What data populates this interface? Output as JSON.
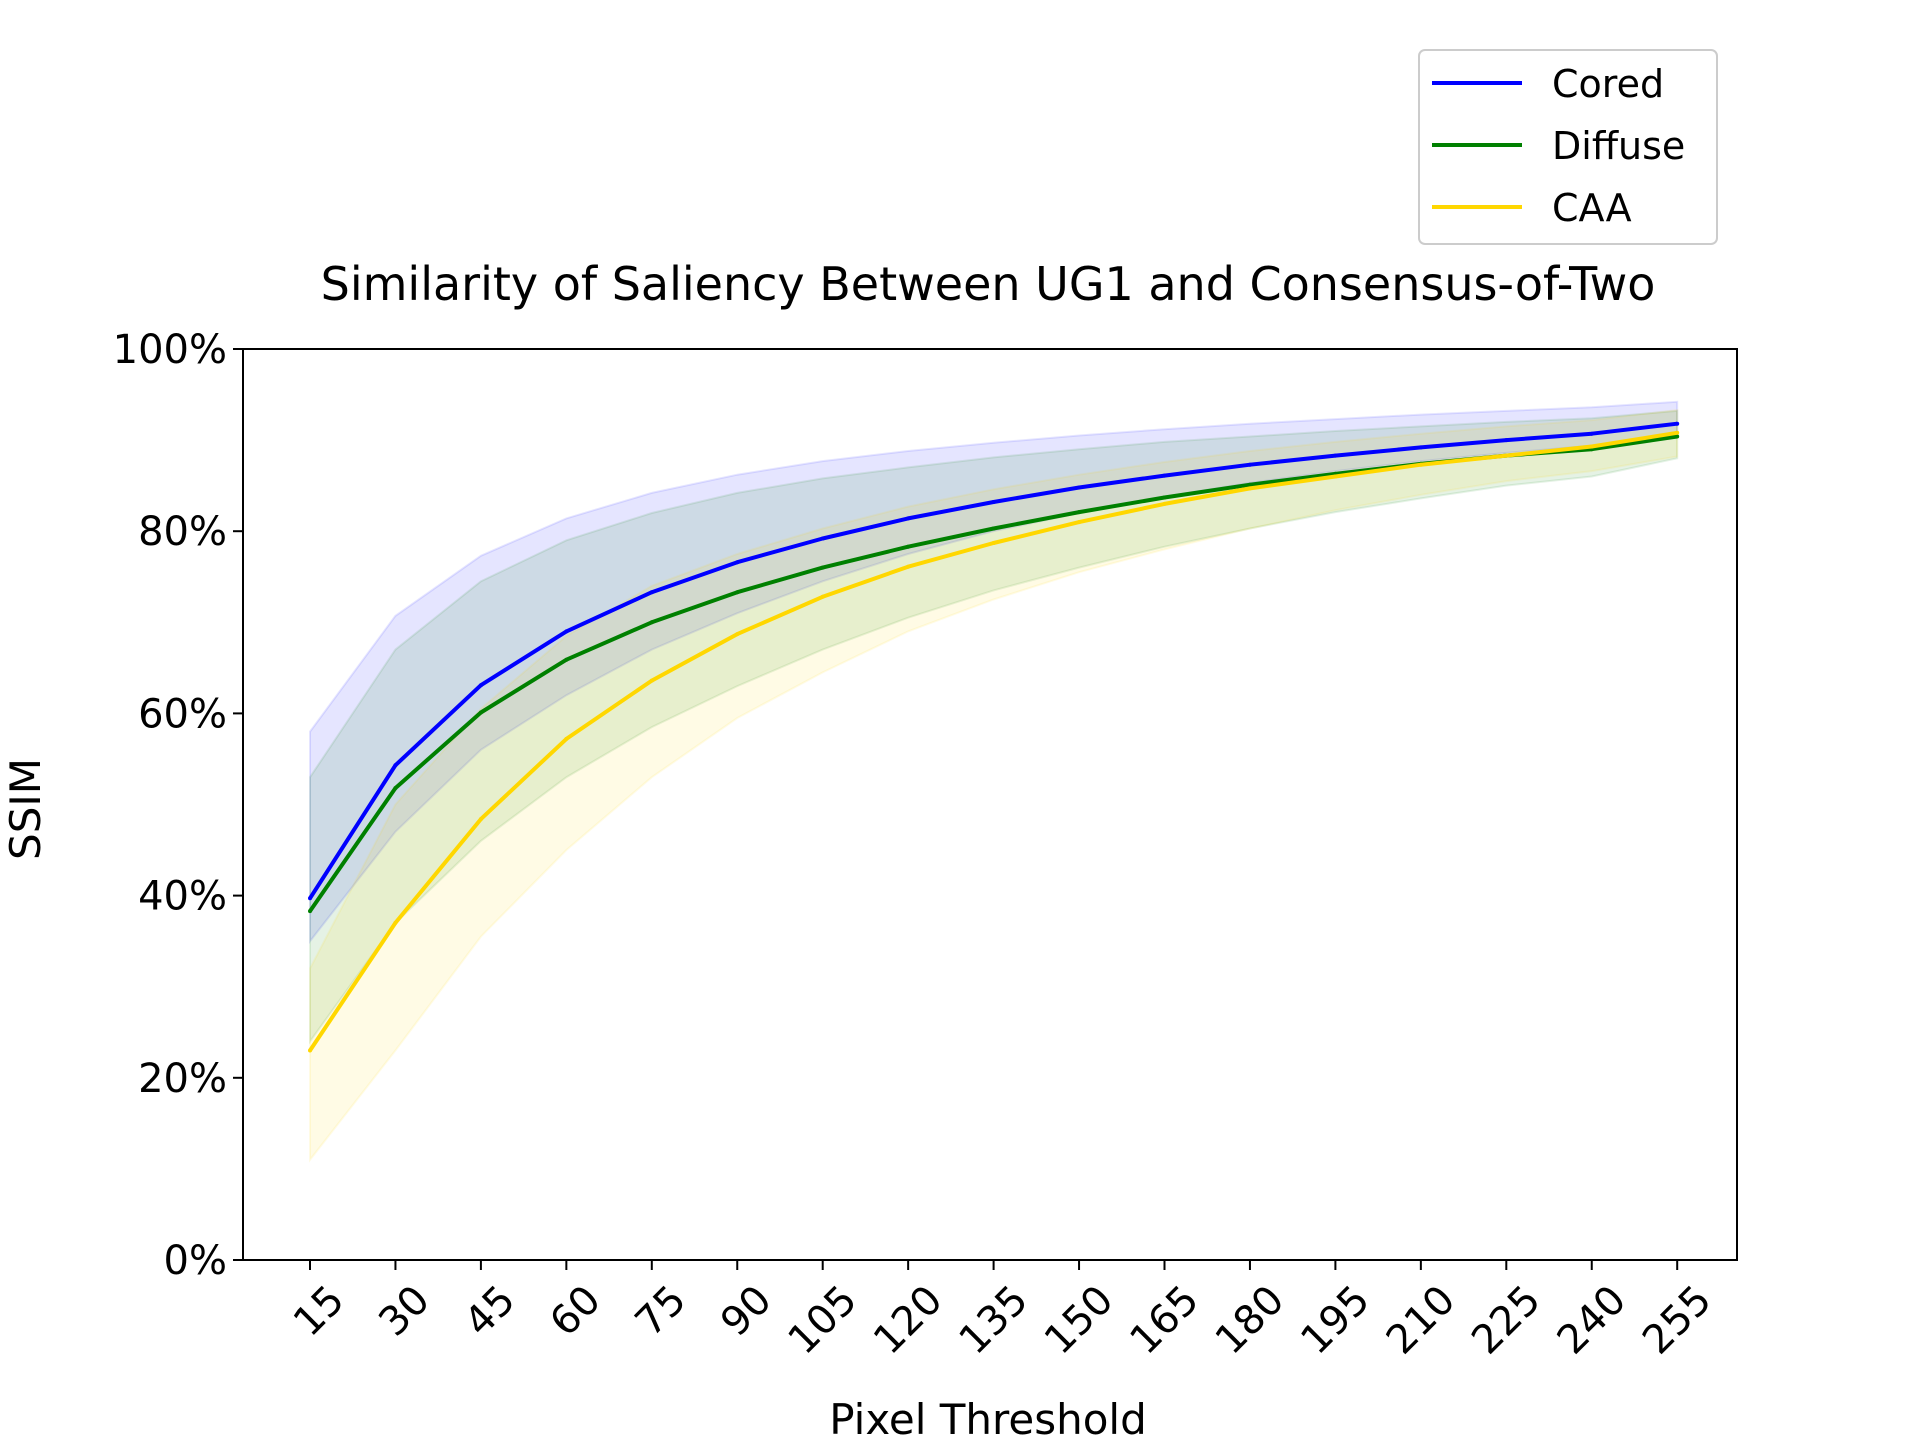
{
  "chart_data": {
    "type": "line",
    "title": "Similarity of Saliency Between UG1 and Consensus-of-Two",
    "xlabel": "Pixel Threshold",
    "ylabel": "SSIM",
    "ylim": [
      0,
      100
    ],
    "y_tick_values": [
      0,
      20,
      40,
      60,
      80,
      100
    ],
    "y_tick_labels": [
      "0%",
      "20%",
      "40%",
      "60%",
      "80%",
      "100%"
    ],
    "x": [
      15,
      30,
      45,
      60,
      75,
      90,
      105,
      120,
      135,
      150,
      165,
      180,
      195,
      210,
      225,
      240,
      255
    ],
    "x_tick_labels": [
      "15",
      "30",
      "45",
      "60",
      "75",
      "90",
      "105",
      "120",
      "135",
      "150",
      "165",
      "180",
      "195",
      "210",
      "225",
      "240",
      "255"
    ],
    "legend_position": "upper-right, above plot",
    "grid": false,
    "series": [
      {
        "name": "Cored",
        "color": "#0000ff",
        "values": [
          39.7,
          54.3,
          63.1,
          69.0,
          73.3,
          76.6,
          79.2,
          81.4,
          83.2,
          84.8,
          86.1,
          87.3,
          88.3,
          89.2,
          90.0,
          90.7,
          91.8
        ],
        "band_upper": [
          58.0,
          70.7,
          77.3,
          81.4,
          84.2,
          86.2,
          87.7,
          88.8,
          89.7,
          90.5,
          91.2,
          91.8,
          92.3,
          92.8,
          93.2,
          93.6,
          94.2
        ],
        "band_lower": [
          35.0,
          47.0,
          56.0,
          62.0,
          67.0,
          71.0,
          74.5,
          77.5,
          80.0,
          82.0,
          83.8,
          85.3,
          86.6,
          87.7,
          88.6,
          89.4,
          90.5
        ]
      },
      {
        "name": "Diffuse",
        "color": "#008000",
        "values": [
          38.3,
          51.8,
          60.1,
          65.9,
          70.0,
          73.3,
          76.0,
          78.3,
          80.3,
          82.1,
          83.7,
          85.1,
          86.3,
          87.4,
          88.3,
          89.0,
          90.4
        ],
        "band_upper": [
          53.0,
          67.0,
          74.5,
          79.0,
          82.0,
          84.2,
          85.8,
          87.0,
          88.1,
          89.0,
          89.8,
          90.4,
          91.0,
          91.5,
          92.0,
          92.4,
          93.2
        ],
        "band_lower": [
          24.0,
          37.0,
          46.0,
          53.0,
          58.5,
          63.0,
          67.0,
          70.5,
          73.5,
          76.0,
          78.3,
          80.3,
          82.1,
          83.6,
          85.0,
          86.0,
          88.0
        ]
      },
      {
        "name": "CAA",
        "color": "#ffd700",
        "values": [
          23.0,
          37.0,
          48.4,
          57.2,
          63.6,
          68.7,
          72.8,
          76.1,
          78.7,
          81.0,
          83.0,
          84.7,
          86.0,
          87.3,
          88.3,
          89.3,
          90.8
        ],
        "band_upper": [
          32.0,
          50.0,
          60.5,
          68.5,
          74.0,
          77.5,
          80.3,
          82.7,
          84.6,
          86.2,
          87.6,
          88.8,
          89.8,
          90.7,
          91.5,
          92.2,
          93.3
        ],
        "band_lower": [
          11.0,
          23.0,
          35.5,
          45.0,
          53.0,
          59.5,
          64.5,
          69.0,
          72.5,
          75.5,
          78.0,
          80.3,
          82.3,
          84.0,
          85.5,
          86.6,
          88.2
        ]
      }
    ]
  }
}
